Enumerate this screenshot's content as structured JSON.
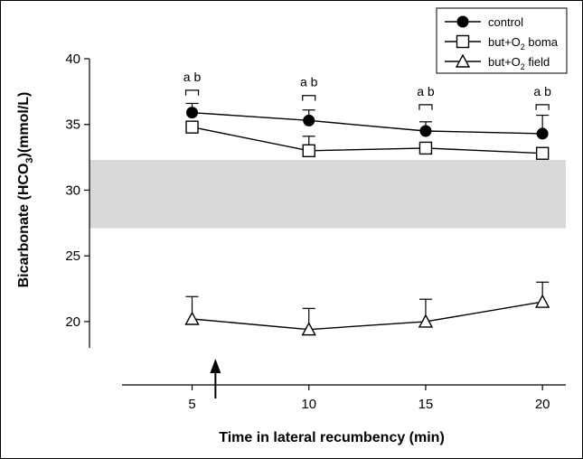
{
  "chart_data": {
    "type": "line",
    "xlabel": "Time in lateral recumbency (min)",
    "ylabel_prefix": "Bicarbonate (HCO",
    "ylabel_sub": "3",
    "ylabel_suffix": ")(mmol/L)",
    "x": [
      5,
      10,
      15,
      20
    ],
    "xlim": [
      2,
      21
    ],
    "ylim": [
      18,
      40
    ],
    "xticks": [
      "5",
      "10",
      "15",
      "20"
    ],
    "yticks": [
      "20",
      "25",
      "30",
      "35",
      "40"
    ],
    "reference_band": [
      27.1,
      32.3
    ],
    "event_arrow_x": 6,
    "series": [
      {
        "name": "control",
        "marker": "circle-filled",
        "values": [
          35.9,
          35.3,
          34.5,
          34.3
        ],
        "error_upper": [
          36.6,
          36.1,
          35.2,
          35.7
        ],
        "error_lower": [
          null,
          null,
          null,
          null
        ]
      },
      {
        "name_prefix": "but+O",
        "name_sub": "2",
        "name_suffix": " boma",
        "marker": "square-open",
        "values": [
          34.8,
          33.0,
          33.2,
          32.8
        ],
        "error_upper": [
          null,
          34.1,
          null,
          null
        ],
        "error_lower": [
          null,
          null,
          null,
          null
        ]
      },
      {
        "name_prefix": "but+O",
        "name_sub": "2",
        "name_suffix": " field",
        "marker": "triangle-open",
        "values": [
          20.2,
          19.4,
          20.0,
          21.5
        ],
        "error_upper": [
          21.9,
          21.0,
          21.7,
          23.0
        ],
        "error_lower": [
          null,
          null,
          null,
          null
        ]
      }
    ],
    "annotations": [
      {
        "x": 5,
        "text": "a b",
        "bracket_top": 37.6,
        "bracket_bottom": 37.2
      },
      {
        "x": 10,
        "text": "a b",
        "bracket_top": 37.2,
        "bracket_bottom": 36.8
      },
      {
        "x": 15,
        "text": "a b",
        "bracket_top": 36.5,
        "bracket_bottom": 36.1
      },
      {
        "x": 20,
        "text": "a b",
        "bracket_top": 36.5,
        "bracket_bottom": 36.1
      }
    ],
    "legend_position": "top-right",
    "grid": false,
    "colors": {
      "line": "#000000",
      "band": "#d9d9d9",
      "filled_marker": "#000000"
    }
  }
}
